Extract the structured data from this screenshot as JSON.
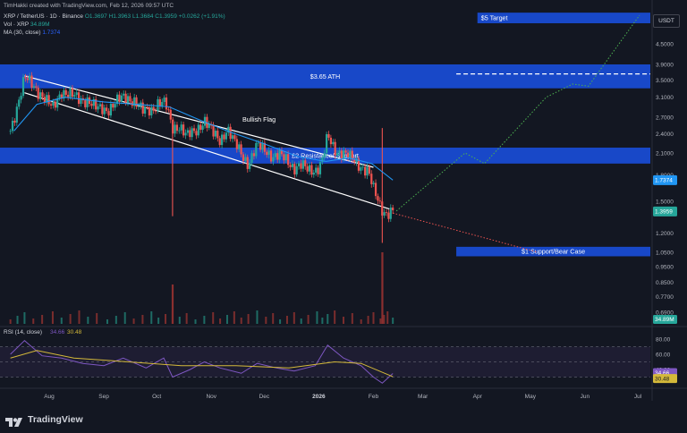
{
  "header": {
    "created_by": "TimHakki created with TradingView.com, Feb 12, 2026 09:57 UTC",
    "symbol_line": "XRP / TetherUS · 1D · Binance",
    "ohlc": {
      "open": "O1.3697",
      "high": "H1.3963",
      "low": "L1.3684",
      "close": "C1.3959",
      "change": "+0.0262 (+1.91%)"
    },
    "vol_label": "Vol · XRP",
    "vol_value": "34.89M",
    "ma_label": "MA (30, close)",
    "ma_value": "1.7374",
    "currency": "USDT"
  },
  "branding": {
    "name": "TradingView"
  },
  "colors": {
    "background": "#131722",
    "zone_blue": "#1848c8",
    "up_candle": "#26a69a",
    "down_candle": "#ef5350",
    "ma_line": "#2196f3",
    "bull_path": "#4caf50",
    "bear_path": "#ef5350",
    "rsi_line": "#7e57c2",
    "rsi_ma": "#d4b93a"
  },
  "annotations": {
    "target": "$5 Target",
    "ath": "$3.65 ATH",
    "resistance": "£2 Resistance/ Support",
    "support": "$1 Support/Bear Case",
    "pattern": "Bullish Flag"
  },
  "chart_data": [
    {
      "type": "candlestick",
      "title": "XRP / TetherUS · 1D · Binance",
      "scale": "log",
      "y_ticks": [
        4.5,
        3.9,
        3.5,
        3.1,
        2.7,
        2.4,
        2.1,
        1.8,
        1.5,
        1.2,
        1.05,
        0.95,
        0.85,
        0.77,
        0.69
      ],
      "y_tick_labels": [
        "4.5000",
        "3.9000",
        "3.5000",
        "3.1000",
        "2.7000",
        "2.4000",
        "2.1000",
        "1.8000",
        "1.5000",
        "1.2000",
        "1.0500",
        "0.9500",
        "0.8500",
        "0.7700",
        "0.6900"
      ],
      "price_labels": [
        {
          "label": "1.7374",
          "value": 1.7374,
          "color": "#2196f3"
        },
        {
          "label": "1.3959",
          "value": 1.3959,
          "color": "#26a69a"
        }
      ],
      "x_ticks": [
        "Aug",
        "Sep",
        "Oct",
        "Nov",
        "Dec",
        "2026",
        "Feb",
        "Mar",
        "Apr",
        "May",
        "Jun",
        "Jul"
      ],
      "x_dates": [
        "2025-08-01",
        "2025-09-01",
        "2025-10-01",
        "2025-11-01",
        "2025-12-01",
        "2026-01-01",
        "2026-02-01",
        "2026-03-01",
        "2026-04-01",
        "2026-05-01",
        "2026-06-01",
        "2026-07-01"
      ],
      "close_path": [
        {
          "date": "2025-07-10",
          "close": 2.45
        },
        {
          "date": "2025-07-14",
          "close": 2.95
        },
        {
          "date": "2025-07-18",
          "close": 3.55
        },
        {
          "date": "2025-07-23",
          "close": 3.35
        },
        {
          "date": "2025-07-28",
          "close": 3.15
        },
        {
          "date": "2025-08-03",
          "close": 2.85
        },
        {
          "date": "2025-08-08",
          "close": 3.25
        },
        {
          "date": "2025-08-13",
          "close": 3.15
        },
        {
          "date": "2025-08-18",
          "close": 3.05
        },
        {
          "date": "2025-08-23",
          "close": 3.05
        },
        {
          "date": "2025-08-28",
          "close": 2.85
        },
        {
          "date": "2025-09-03",
          "close": 2.85
        },
        {
          "date": "2025-09-08",
          "close": 3.0
        },
        {
          "date": "2025-09-13",
          "close": 3.1
        },
        {
          "date": "2025-09-18",
          "close": 3.05
        },
        {
          "date": "2025-09-23",
          "close": 2.8
        },
        {
          "date": "2025-09-28",
          "close": 2.85
        },
        {
          "date": "2025-10-02",
          "close": 3.0
        },
        {
          "date": "2025-10-06",
          "close": 2.95
        },
        {
          "date": "2025-10-10",
          "close": 2.5
        },
        {
          "date": "2025-10-14",
          "close": 2.55
        },
        {
          "date": "2025-10-18",
          "close": 2.35
        },
        {
          "date": "2025-10-23",
          "close": 2.45
        },
        {
          "date": "2025-10-28",
          "close": 2.65
        },
        {
          "date": "2025-11-02",
          "close": 2.4
        },
        {
          "date": "2025-11-06",
          "close": 2.3
        },
        {
          "date": "2025-11-10",
          "close": 2.5
        },
        {
          "date": "2025-11-14",
          "close": 2.25
        },
        {
          "date": "2025-11-18",
          "close": 2.1
        },
        {
          "date": "2025-11-22",
          "close": 1.95
        },
        {
          "date": "2025-11-27",
          "close": 2.2
        },
        {
          "date": "2025-12-02",
          "close": 2.15
        },
        {
          "date": "2025-12-06",
          "close": 2.05
        },
        {
          "date": "2025-12-10",
          "close": 2.05
        },
        {
          "date": "2025-12-14",
          "close": 2.0
        },
        {
          "date": "2025-12-18",
          "close": 1.9
        },
        {
          "date": "2025-12-22",
          "close": 1.92
        },
        {
          "date": "2025-12-26",
          "close": 1.86
        },
        {
          "date": "2025-12-31",
          "close": 1.88
        },
        {
          "date": "2026-01-03",
          "close": 2.0
        },
        {
          "date": "2026-01-06",
          "close": 2.35
        },
        {
          "date": "2026-01-10",
          "close": 2.15
        },
        {
          "date": "2026-01-15",
          "close": 2.1
        },
        {
          "date": "2026-01-20",
          "close": 2.0
        },
        {
          "date": "2026-01-25",
          "close": 1.92
        },
        {
          "date": "2026-01-29",
          "close": 1.85
        },
        {
          "date": "2026-02-01",
          "close": 1.62
        },
        {
          "date": "2026-02-05",
          "close": 1.45
        },
        {
          "date": "2026-02-07",
          "close": 1.4
        },
        {
          "date": "2026-02-09",
          "close": 1.38
        },
        {
          "date": "2026-02-12",
          "close": 1.3959
        }
      ],
      "wicks": [
        {
          "date": "2025-10-10",
          "low": 1.35
        },
        {
          "date": "2026-02-06",
          "low": 1.12
        }
      ],
      "ma_30": [
        {
          "date": "2025-07-12",
          "value": 2.45
        },
        {
          "date": "2025-07-25",
          "value": 2.95
        },
        {
          "date": "2025-08-10",
          "value": 3.1
        },
        {
          "date": "2025-09-01",
          "value": 3.0
        },
        {
          "date": "2025-09-20",
          "value": 2.95
        },
        {
          "date": "2025-10-08",
          "value": 2.9
        },
        {
          "date": "2025-10-25",
          "value": 2.65
        },
        {
          "date": "2025-11-10",
          "value": 2.45
        },
        {
          "date": "2025-11-30",
          "value": 2.25
        },
        {
          "date": "2025-12-20",
          "value": 2.05
        },
        {
          "date": "2026-01-05",
          "value": 1.98
        },
        {
          "date": "2026-01-18",
          "value": 2.03
        },
        {
          "date": "2026-01-31",
          "value": 1.95
        },
        {
          "date": "2026-02-12",
          "value": 1.7374
        }
      ],
      "channel_upper": [
        {
          "date": "2025-07-18",
          "value": 3.6
        },
        {
          "date": "2026-02-01",
          "value": 1.9
        }
      ],
      "channel_lower": [
        {
          "date": "2025-07-18",
          "value": 3.2
        },
        {
          "date": "2026-02-10",
          "value": 1.42
        }
      ],
      "zones": [
        {
          "label": "$5 Target",
          "from": "2026-04-01",
          "to": "2026-07-15",
          "low": 5.2,
          "high": 5.6
        },
        {
          "label": "$3.65 ATH",
          "from": "2025-07-01",
          "to": "2026-07-15",
          "low": 3.3,
          "high": 3.9
        },
        {
          "label": "£2 Resistance/ Support",
          "from": "2025-07-01",
          "to": "2026-07-15",
          "low": 1.95,
          "high": 2.18
        },
        {
          "label": "$1 Support/Bear Case",
          "from": "2026-03-20",
          "to": "2026-07-15",
          "low": 1.02,
          "high": 1.09
        }
      ],
      "ath_line": {
        "from": "2026-03-20",
        "to": "2026-07-15",
        "value": 3.65
      },
      "bull_path": [
        {
          "date": "2026-02-14",
          "value": 1.4
        },
        {
          "date": "2026-03-25",
          "value": 2.1
        },
        {
          "date": "2026-04-05",
          "value": 1.95
        },
        {
          "date": "2026-05-10",
          "value": 3.1
        },
        {
          "date": "2026-05-25",
          "value": 3.4
        },
        {
          "date": "2026-06-03",
          "value": 3.35
        },
        {
          "date": "2026-07-02",
          "value": 5.5
        }
      ],
      "bear_path": [
        {
          "date": "2026-02-12",
          "value": 1.38
        },
        {
          "date": "2026-05-05",
          "value": 1.05
        }
      ]
    },
    {
      "type": "bar",
      "title": "Vol · XRP",
      "value_label": "34.89M",
      "spikes": [
        {
          "date": "2025-10-10",
          "relative": 0.55
        },
        {
          "date": "2026-02-06",
          "relative": 1.0
        }
      ]
    },
    {
      "type": "line",
      "title": "RSI (14, close)",
      "y_ticks": [
        80,
        60,
        40
      ],
      "y_tick_labels": [
        "80.00",
        "60.00",
        "40.00"
      ],
      "levels": [
        70,
        50,
        30
      ],
      "rsi_value": 34.66,
      "rsi_label": "34.66",
      "rsi_ma_value": 30.48,
      "rsi_ma_label": "30.48",
      "rsi": [
        {
          "date": "2025-07-10",
          "value": 60
        },
        {
          "date": "2025-07-18",
          "value": 78
        },
        {
          "date": "2025-07-28",
          "value": 58
        },
        {
          "date": "2025-08-08",
          "value": 55
        },
        {
          "date": "2025-08-20",
          "value": 48
        },
        {
          "date": "2025-09-01",
          "value": 45
        },
        {
          "date": "2025-09-12",
          "value": 55
        },
        {
          "date": "2025-09-25",
          "value": 42
        },
        {
          "date": "2025-10-05",
          "value": 55
        },
        {
          "date": "2025-10-10",
          "value": 30
        },
        {
          "date": "2025-10-20",
          "value": 40
        },
        {
          "date": "2025-10-28",
          "value": 50
        },
        {
          "date": "2025-11-06",
          "value": 42
        },
        {
          "date": "2025-11-18",
          "value": 35
        },
        {
          "date": "2025-11-27",
          "value": 48
        },
        {
          "date": "2025-12-08",
          "value": 42
        },
        {
          "date": "2025-12-18",
          "value": 38
        },
        {
          "date": "2025-12-30",
          "value": 45
        },
        {
          "date": "2026-01-06",
          "value": 72
        },
        {
          "date": "2026-01-15",
          "value": 55
        },
        {
          "date": "2026-01-25",
          "value": 45
        },
        {
          "date": "2026-02-01",
          "value": 30
        },
        {
          "date": "2026-02-06",
          "value": 22
        },
        {
          "date": "2026-02-12",
          "value": 34.66
        }
      ],
      "rsi_ma": [
        {
          "date": "2025-07-10",
          "value": 55
        },
        {
          "date": "2025-07-25",
          "value": 65
        },
        {
          "date": "2025-08-15",
          "value": 55
        },
        {
          "date": "2025-09-15",
          "value": 50
        },
        {
          "date": "2025-10-15",
          "value": 45
        },
        {
          "date": "2025-11-15",
          "value": 45
        },
        {
          "date": "2025-12-15",
          "value": 42
        },
        {
          "date": "2026-01-10",
          "value": 50
        },
        {
          "date": "2026-01-25",
          "value": 48
        },
        {
          "date": "2026-02-12",
          "value": 30.48
        }
      ]
    }
  ]
}
